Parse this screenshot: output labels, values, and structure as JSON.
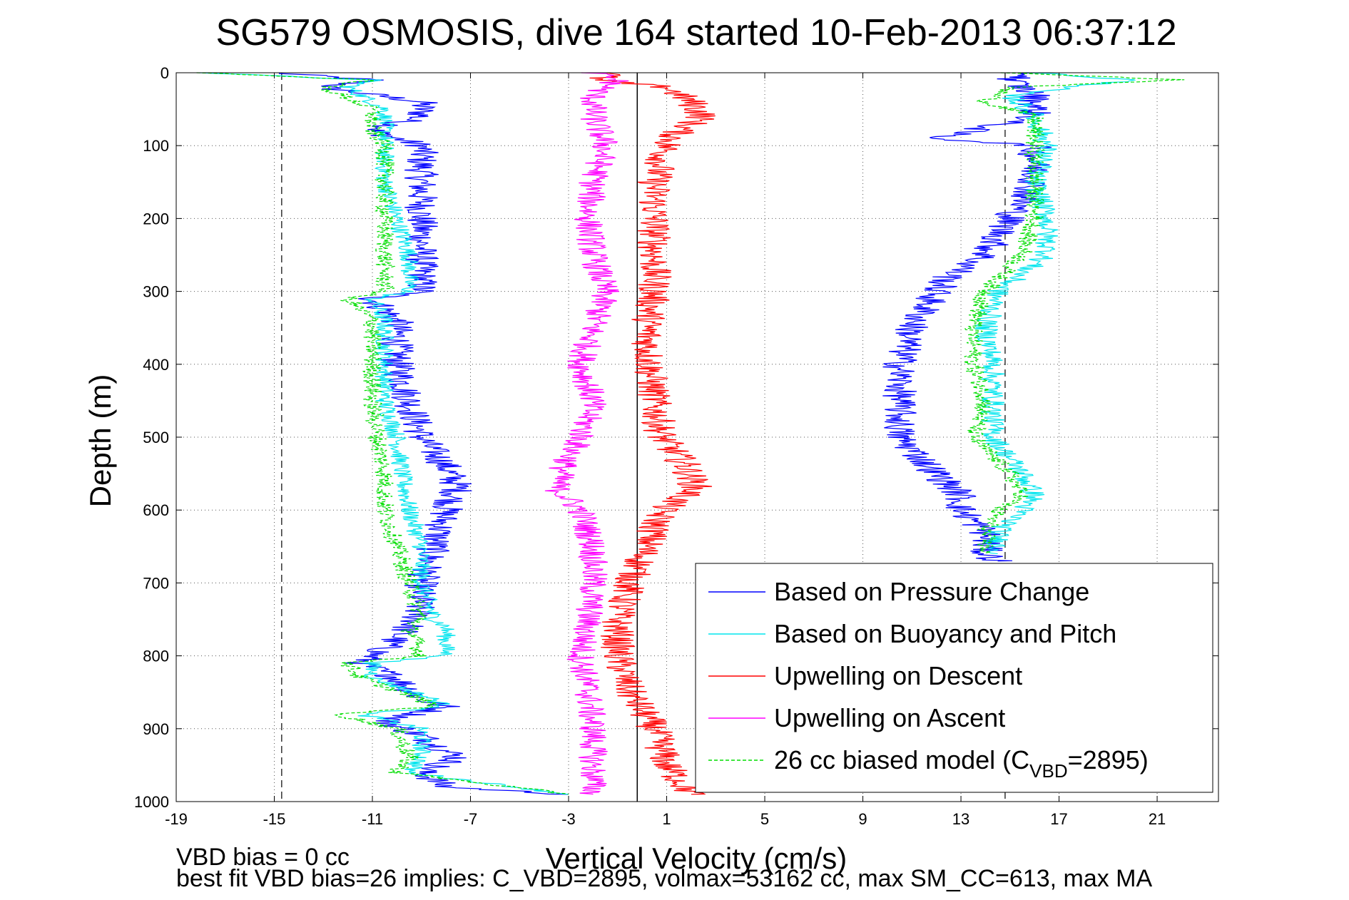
{
  "chart_data": {
    "type": "line",
    "title": "SG579 OSMOSIS, dive 164 started 10-Feb-2013 06:37:12",
    "xlabel": "Vertical Velocity (cm/s)",
    "ylabel": "Depth (m)",
    "xlim": [
      -19,
      23.5
    ],
    "ylim": [
      0,
      1000
    ],
    "y_reversed": true,
    "grid": "dotted",
    "x_ticks": [
      -19,
      -15,
      -11,
      -7,
      -3,
      1,
      5,
      9,
      13,
      17,
      21
    ],
    "y_ticks": [
      0,
      100,
      200,
      300,
      400,
      500,
      600,
      700,
      800,
      900,
      1000
    ],
    "reference_lines": [
      {
        "x": -14.7,
        "style": "dashed"
      },
      {
        "x": 14.8,
        "style": "dashed"
      },
      {
        "x": -0.2,
        "style": "solid"
      }
    ],
    "legend_position": "bottom-right",
    "series": [
      {
        "name": "Based on Pressure Change",
        "color": "#0000ff",
        "noise": 0.7,
        "depth": [
          0,
          10,
          20,
          40,
          60,
          80,
          100,
          150,
          200,
          250,
          300,
          310,
          340,
          400,
          450,
          500,
          540,
          570,
          600,
          650,
          700,
          750,
          790,
          810,
          830,
          860,
          870,
          890,
          910,
          940,
          960,
          980,
          990
        ],
        "values": [
          -15,
          -11,
          -13,
          -9,
          -9,
          -11,
          -9,
          -9,
          -9,
          -9,
          -9,
          -11,
          -10,
          -10,
          -9.5,
          -9,
          -8,
          -7.5,
          -8,
          -8.5,
          -9,
          -9.2,
          -10.5,
          -11.5,
          -10,
          -9,
          -8,
          -10.5,
          -9,
          -7.5,
          -9,
          -8,
          -3
        ]
      },
      {
        "name": "Based on Buoyancy and Pitch",
        "color": "#00e5ee",
        "noise": 0.4,
        "depth": [
          0,
          10,
          20,
          50,
          80,
          100,
          150,
          200,
          250,
          300,
          310,
          340,
          400,
          450,
          500,
          550,
          600,
          650,
          700,
          750,
          760,
          800,
          810,
          830,
          860,
          870,
          880,
          900,
          940,
          960,
          990
        ],
        "values": [
          -18,
          -11,
          -12,
          -10.5,
          -10.5,
          -10.5,
          -10.5,
          -10,
          -9.5,
          -9.5,
          -11,
          -10.5,
          -10.5,
          -10.5,
          -10,
          -9.8,
          -9.5,
          -9,
          -9,
          -8.5,
          -8,
          -8,
          -11,
          -11,
          -8.5,
          -8,
          -11.5,
          -9,
          -9,
          -9.5,
          -3
        ]
      },
      {
        "name": "Upwelling on Descent",
        "color": "#ff0000",
        "noise": 0.7,
        "depth": [
          0,
          10,
          20,
          40,
          60,
          80,
          100,
          150,
          200,
          250,
          300,
          350,
          400,
          450,
          500,
          540,
          570,
          600,
          650,
          700,
          750,
          800,
          850,
          900,
          950,
          990
        ],
        "values": [
          -1,
          -2,
          1,
          2,
          2.5,
          1.5,
          1,
          0.5,
          0.5,
          0.5,
          0.5,
          0.2,
          0.3,
          0.5,
          0.8,
          1.8,
          2.2,
          0.8,
          0.2,
          -0.5,
          -1,
          -1,
          -0.5,
          0.5,
          1,
          2
        ]
      },
      {
        "name": "Upwelling on Ascent",
        "color": "#ff00ff",
        "noise": 0.6,
        "depth": [
          0,
          10,
          30,
          60,
          100,
          150,
          200,
          250,
          300,
          350,
          400,
          450,
          500,
          540,
          570,
          600,
          650,
          700,
          750,
          800,
          850,
          900,
          950,
          990
        ],
        "values": [
          -2,
          -1,
          -2,
          -2,
          -1.5,
          -2,
          -2.2,
          -2,
          -1.5,
          -2,
          -2.5,
          -2,
          -2.5,
          -3.2,
          -3.5,
          -2.5,
          -2,
          -2,
          -2.2,
          -2.5,
          -2.2,
          -2,
          -2,
          -2
        ]
      },
      {
        "name": "26 cc biased model (C",
        "name_sub": "VBD",
        "name_suffix": "=2895)",
        "color": "#00dd00",
        "dashed": true,
        "noise": 0.4,
        "depth": [
          0,
          10,
          20,
          50,
          80,
          100,
          150,
          200,
          250,
          300,
          310,
          340,
          400,
          450,
          500,
          550,
          600,
          650,
          700,
          750,
          760,
          800,
          810,
          830,
          860,
          870,
          880,
          900,
          940,
          960,
          990
        ],
        "values": [
          -18,
          -11,
          -13,
          -11,
          -11,
          -10.5,
          -10.5,
          -10.5,
          -10.5,
          -10.5,
          -12,
          -11,
          -11,
          -11,
          -10.8,
          -10.5,
          -10.5,
          -10,
          -9.5,
          -9,
          -9.5,
          -9,
          -12,
          -11.5,
          -9,
          -8.5,
          -12.5,
          -10,
          -9.5,
          -10,
          -3
        ]
      },
      {
        "color": "#0000ff",
        "noise": 0.7,
        "depth": [
          0,
          10,
          30,
          60,
          90,
          100,
          150,
          200,
          250,
          280,
          300,
          350,
          400,
          450,
          500,
          550,
          580,
          600,
          630,
          660,
          670
        ],
        "values": [
          16,
          15,
          16,
          16,
          12,
          16,
          16,
          15,
          14,
          12.5,
          12,
          11,
          10.5,
          10.5,
          10.5,
          12,
          13,
          13,
          14,
          14,
          14.5
        ]
      },
      {
        "color": "#00e5ee",
        "noise": 0.5,
        "depth": [
          0,
          10,
          30,
          60,
          100,
          150,
          200,
          250,
          300,
          350,
          400,
          450,
          500,
          550,
          580,
          600,
          630,
          660
        ],
        "values": [
          16,
          20,
          15,
          16,
          16.5,
          16,
          16.5,
          16.5,
          14.5,
          14,
          14.3,
          14.3,
          14.3,
          15.5,
          16,
          15.5,
          14.5,
          14.5
        ]
      },
      {
        "color": "#00dd00",
        "dashed": true,
        "noise": 0.4,
        "depth": [
          0,
          10,
          20,
          40,
          60,
          100,
          150,
          200,
          250,
          300,
          350,
          400,
          450,
          500,
          550,
          580,
          600,
          630,
          660
        ],
        "values": [
          15,
          22,
          15,
          14,
          16,
          16,
          16,
          16,
          15.5,
          14,
          13.5,
          13.5,
          14,
          13.5,
          15,
          15.5,
          14.5,
          14,
          14
        ]
      }
    ],
    "annotations": [
      "VBD bias = 0 cc",
      "best fit VBD bias=26 implies: C_VBD=2895, volmax=53162 cc, max SM_CC=613, max MA"
    ]
  }
}
